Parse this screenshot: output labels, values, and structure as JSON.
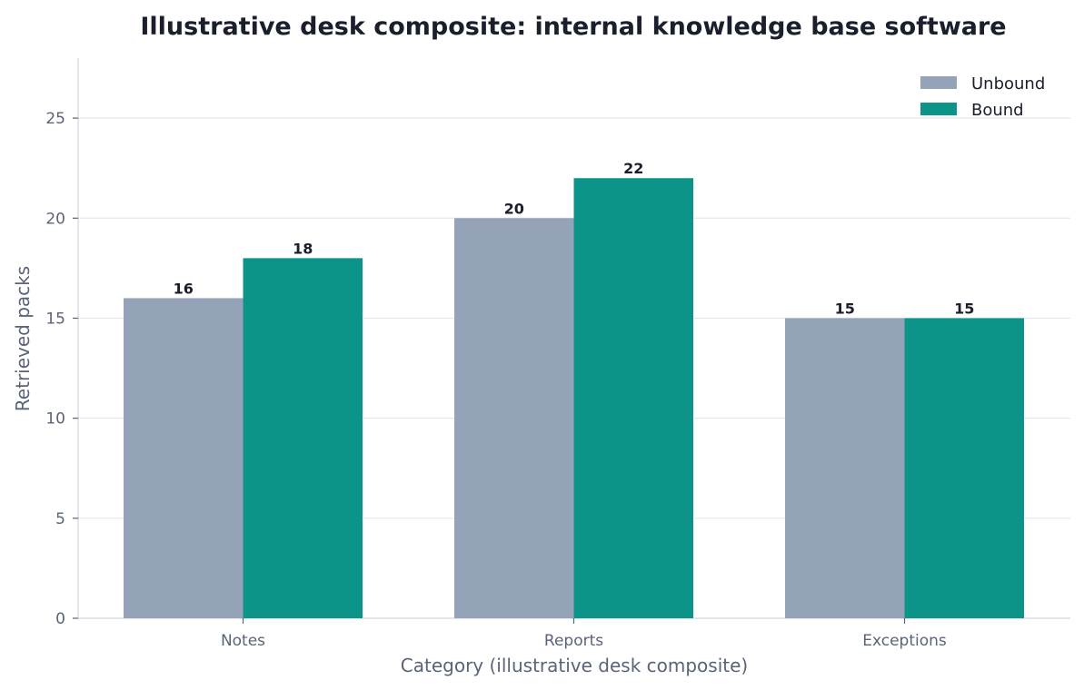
{
  "chart_data": {
    "type": "bar",
    "title": "Illustrative desk composite: internal knowledge base software",
    "xlabel": "Category (illustrative desk composite)",
    "ylabel": "Retrieved packs",
    "categories": [
      "Notes",
      "Reports",
      "Exceptions"
    ],
    "series": [
      {
        "name": "Unbound",
        "values": [
          16,
          20,
          15
        ],
        "color": "#94a3b8"
      },
      {
        "name": "Bound",
        "values": [
          18,
          22,
          15
        ],
        "color": "#0d9488"
      }
    ],
    "ylim": [
      0,
      28
    ],
    "yticks": [
      0,
      5,
      10,
      15,
      20,
      25
    ],
    "grid": true,
    "legend_position": "top-right"
  }
}
